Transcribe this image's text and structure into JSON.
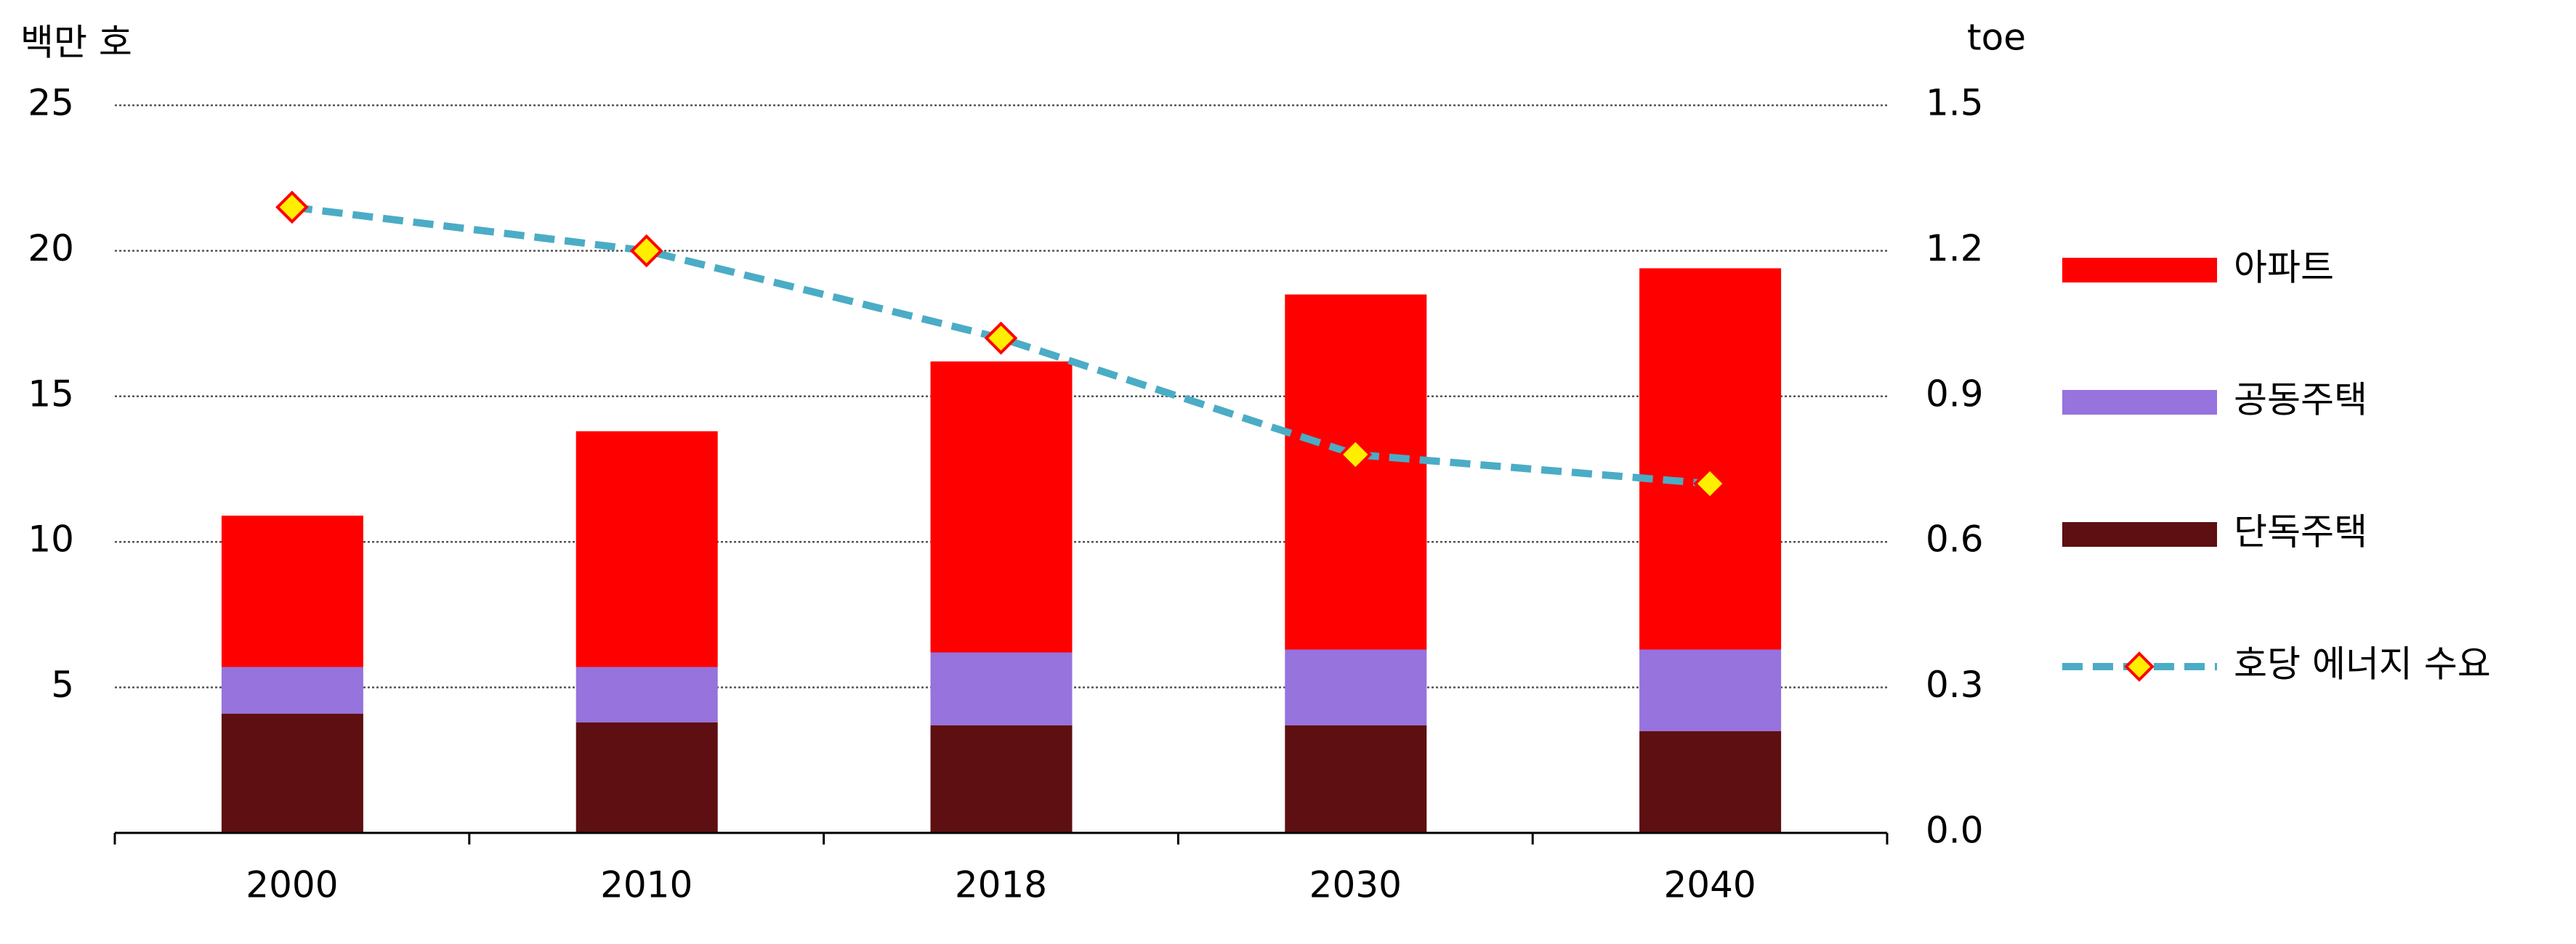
{
  "chart_data": {
    "type": "bar",
    "stacked": true,
    "y_label": "백만 호",
    "y2_label": "toe",
    "categories": [
      "2000",
      "2010",
      "2018",
      "2030",
      "2040"
    ],
    "series": [
      {
        "name": "아파트",
        "color": "#ff0000",
        "values": [
          5.2,
          8.1,
          10.0,
          12.2,
          13.1
        ]
      },
      {
        "name": "공동주택",
        "color": "#9673dd",
        "values": [
          1.6,
          1.9,
          2.5,
          2.6,
          2.8
        ]
      },
      {
        "name": "단독주택",
        "color": "#5e0f12",
        "values": [
          4.1,
          3.8,
          3.7,
          3.7,
          3.5
        ]
      },
      {
        "name": "호당 에너지 수요",
        "color": "#4bacc6",
        "axis": "y2",
        "marker_color": "#ffee00",
        "marker_edge": "#ff0000",
        "values": [
          1.29,
          1.2,
          1.02,
          0.78,
          0.72
        ]
      }
    ],
    "ylim": [
      0,
      25
    ],
    "yticks": [
      5,
      10,
      15,
      20,
      25
    ],
    "y2lim": [
      0,
      1.5
    ],
    "y2ticks": [
      {
        "value": 0,
        "label": "0.0"
      },
      0.3,
      0.6,
      0.9,
      1.2,
      1.5
    ],
    "grid": true,
    "legend": "right"
  }
}
